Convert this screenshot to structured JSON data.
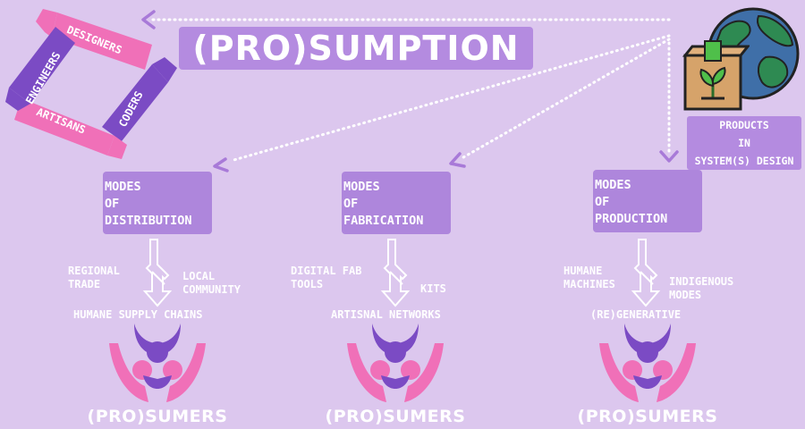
{
  "title": "(PRO)SUMPTION",
  "hands": {
    "top": "DESIGNERS",
    "right": "CODERS",
    "bottom": "ARTISANS",
    "left": "ENGINEERS"
  },
  "products": {
    "line1": "PRODUCTS",
    "line2": "IN",
    "line3": "SYSTEM(S) DESIGN"
  },
  "modes": [
    {
      "line1": "MODES",
      "line2": "OF",
      "line3": "DISTRIBUTION",
      "left_line1": "REGIONAL",
      "left_line2": "TRADE",
      "right_line1": "LOCAL",
      "right_line2": "COMMUNITY",
      "bottom": "HUMANE SUPPLY CHAINS",
      "prosumer": "(PRO)SUMERS"
    },
    {
      "line1": "MODES",
      "line2": "OF",
      "line3": "FABRICATION",
      "left_line1": "DIGITAL FAB",
      "left_line2": "TOOLS",
      "right_line1": "KITS",
      "right_line2": "",
      "bottom": "ARTISNAL NETWORKS",
      "prosumer": "(PRO)SUMERS"
    },
    {
      "line1": "MODES",
      "line2": "OF",
      "line3": "PRODUCTION",
      "left_line1": "HUMANE",
      "left_line2": "MACHINES",
      "right_line1": "INDIGENOUS",
      "right_line2": "MODES",
      "bottom": "(RE)GENERATIVE",
      "prosumer": "(PRO)SUMERS"
    }
  ],
  "colors": {
    "background": "#dcc7ee",
    "box": "#ae86dc",
    "pink": "#f070b8",
    "purple": "#7b4bc4",
    "arrow": "#ffffff"
  },
  "icons": [
    "four-hands-icon",
    "globe-icon",
    "product-box-icon",
    "prosumer-figure-icon",
    "down-arrow-icon"
  ]
}
